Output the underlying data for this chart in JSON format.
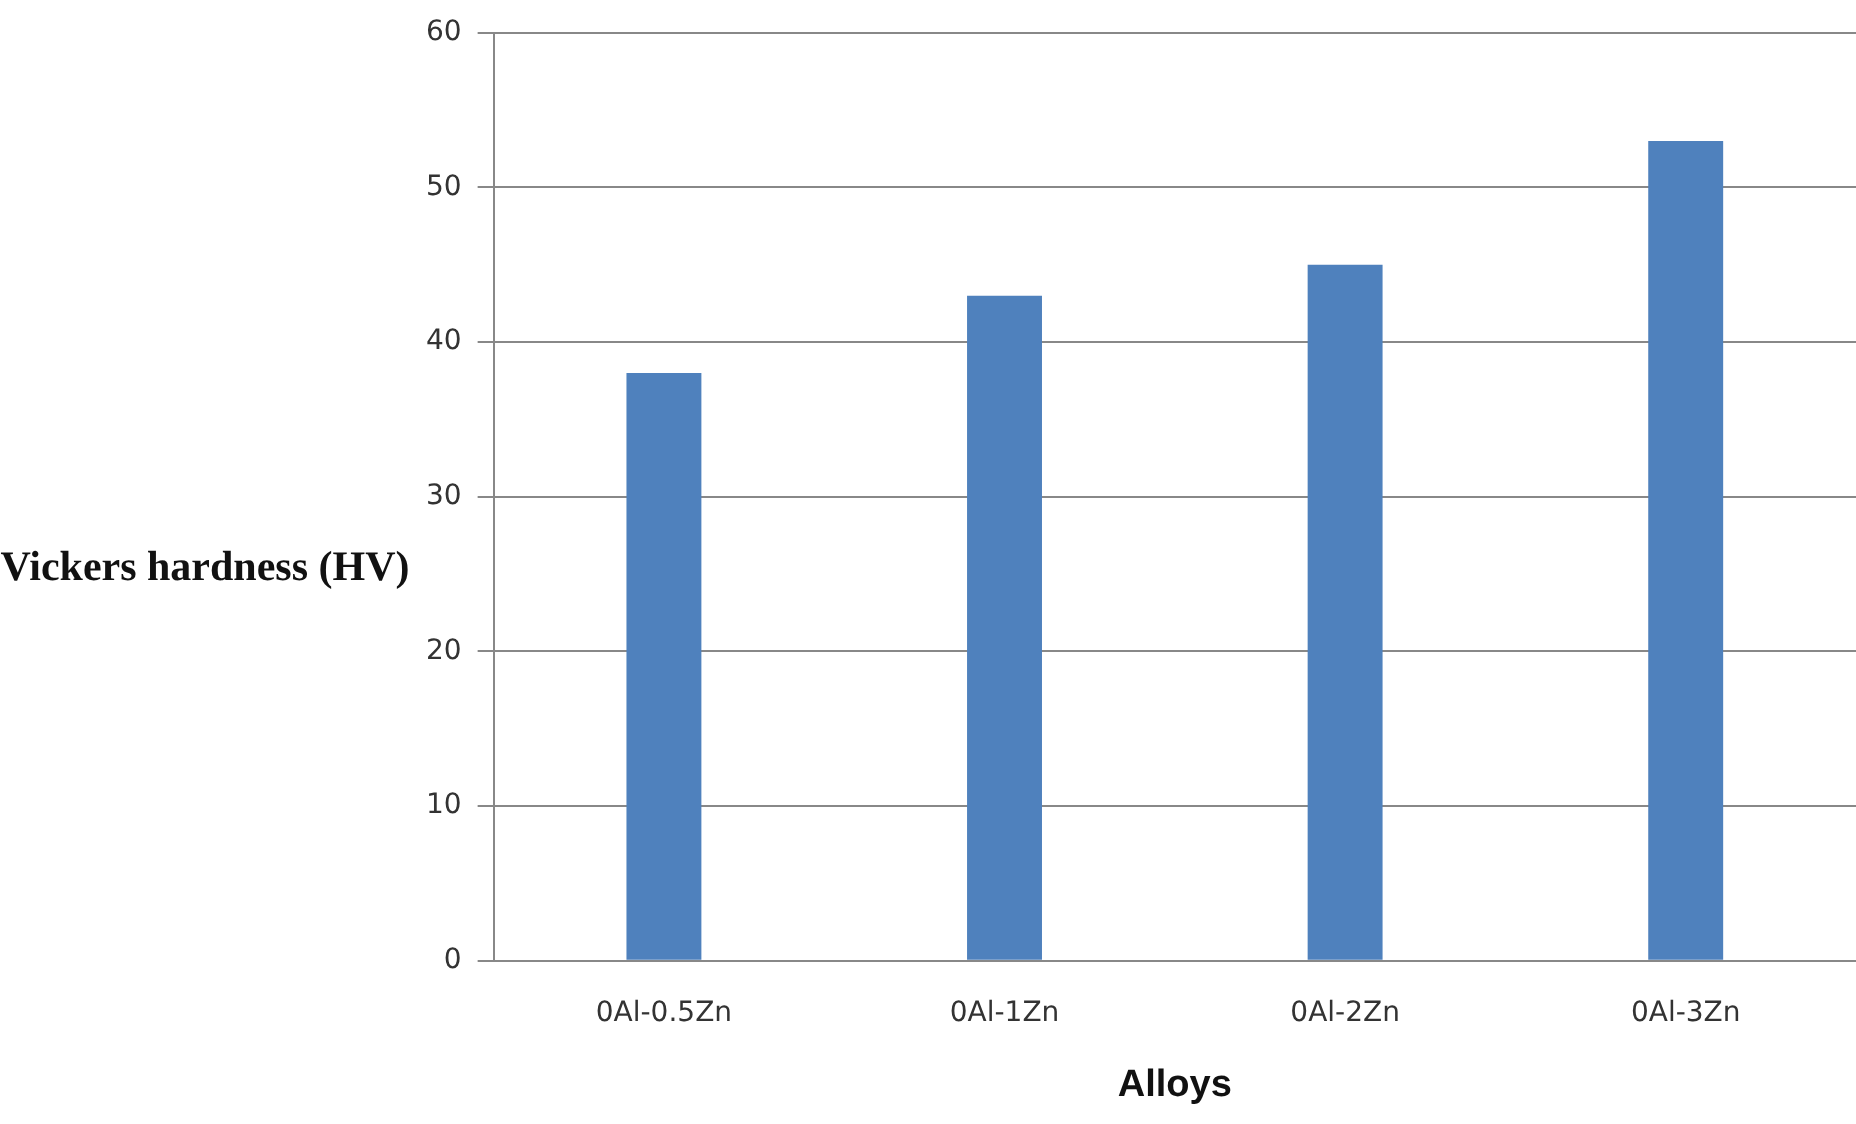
{
  "chart_data": {
    "type": "bar",
    "xlabel": "Alloys",
    "ylabel": "Vickers hardness (HV)",
    "categories": [
      "0Al-0.5Zn",
      "0Al-1Zn",
      "0Al-2Zn",
      "0Al-3Zn"
    ],
    "values": [
      38,
      43,
      45,
      53
    ],
    "color": "#4f81bd",
    "ylim": [
      0,
      60
    ],
    "yticks": [
      0,
      10,
      20,
      30,
      40,
      50,
      60
    ],
    "grid": "y",
    "legend": false
  }
}
